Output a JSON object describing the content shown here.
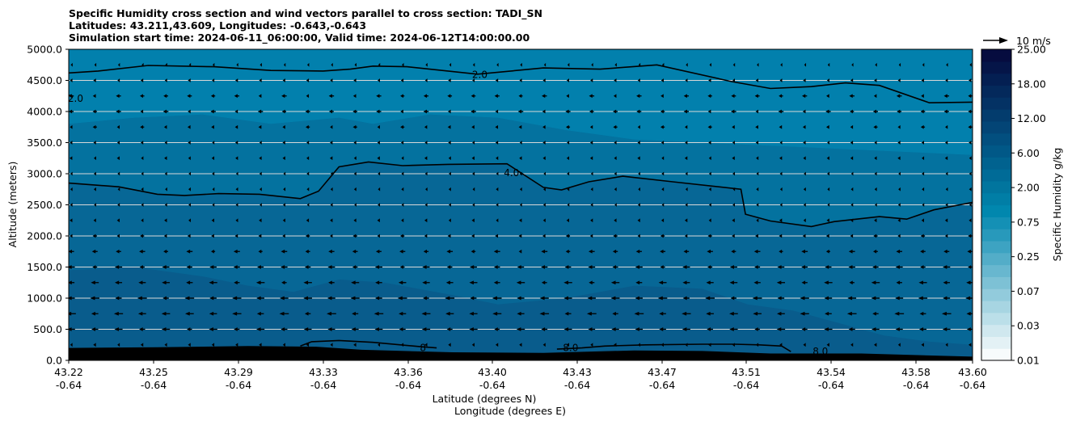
{
  "titles": [
    "Specific Humidity cross section and wind vectors parallel to cross section: TADI_SN",
    "Latitudes: 43.211,43.609, Longitudes: -0.643,-0.643",
    "Simulation start time: 2024-06-11_06:00:00, Valid time: 2024-06-12T14:00:00.00"
  ],
  "chart_data": {
    "type": "heatmap",
    "ylabel": "Altitude (meters)",
    "xlabel_lines": [
      "Latitude (degrees N)",
      "Longitude (degrees E)"
    ],
    "ylim": [
      0,
      5000
    ],
    "xlim": [
      43.211,
      43.609
    ],
    "y_ticks": [
      "0.0",
      "500.0",
      "1000.0",
      "1500.0",
      "2000.0",
      "2500.0",
      "3000.0",
      "3500.0",
      "4000.0",
      "4500.0",
      "5000.0"
    ],
    "y_tick_values": [
      0,
      500,
      1000,
      1500,
      2000,
      2500,
      3000,
      3500,
      4000,
      4500,
      5000
    ],
    "x_ticks": [
      {
        "lat": "43.22",
        "lon": "-0.64"
      },
      {
        "lat": "43.25",
        "lon": "-0.64"
      },
      {
        "lat": "43.29",
        "lon": "-0.64"
      },
      {
        "lat": "43.33",
        "lon": "-0.64"
      },
      {
        "lat": "43.36",
        "lon": "-0.64"
      },
      {
        "lat": "43.40",
        "lon": "-0.64"
      },
      {
        "lat": "43.43",
        "lon": "-0.64"
      },
      {
        "lat": "43.47",
        "lon": "-0.64"
      },
      {
        "lat": "43.51",
        "lon": "-0.64"
      },
      {
        "lat": "43.54",
        "lon": "-0.64"
      },
      {
        "lat": "43.58",
        "lon": "-0.64"
      },
      {
        "lat": "43.60",
        "lon": "-0.64"
      }
    ],
    "x_tick_values": [
      43.22,
      43.25,
      43.29,
      43.33,
      43.36,
      43.4,
      43.43,
      43.47,
      43.51,
      43.54,
      43.58,
      43.6
    ],
    "grid": "horizontal",
    "colorbar": {
      "label": "Specific Humidity g/kg",
      "tick_labels": [
        "0.01",
        "0.03",
        "0.07",
        "0.25",
        "0.75",
        "2.00",
        "6.00",
        "12.00",
        "18.00",
        "25.00"
      ],
      "colors": [
        "#f7fbfc",
        "#e3f1f5",
        "#d0e8ef",
        "#bbdfe9",
        "#a7d5e2",
        "#92cbdc",
        "#7dc1d5",
        "#68b7cf",
        "#53adc8",
        "#3da3c2",
        "#2899bb",
        "#1490b5",
        "#0187ae",
        "#017ea6",
        "#01759e",
        "#006b97",
        "#01628f",
        "#015887",
        "#024f7f",
        "#034576",
        "#033c6d",
        "#043264",
        "#04295b",
        "#041f52",
        "#051548",
        "#060c3f"
      ]
    },
    "fill_levels": [
      {
        "range": "2.00-4.00",
        "color": "#0280ad"
      },
      {
        "range": "4.00-6.00",
        "color": "#04729f"
      },
      {
        "range": "6.00-8.00",
        "color": "#076796"
      },
      {
        "range": "8.00-10.00",
        "color": "#095c8c"
      }
    ],
    "contour_levels": [
      "2.0",
      "4.0",
      "8.0"
    ],
    "contours": [
      {
        "level": "2.0",
        "points": [
          [
            43.211,
            4620
          ],
          [
            43.224,
            4650
          ],
          [
            43.246,
            4740
          ],
          [
            43.275,
            4720
          ],
          [
            43.3,
            4660
          ],
          [
            43.323,
            4650
          ],
          [
            43.335,
            4680
          ],
          [
            43.345,
            4730
          ],
          [
            43.36,
            4720
          ],
          [
            43.391,
            4600
          ],
          [
            43.42,
            4700
          ],
          [
            43.445,
            4680
          ],
          [
            43.47,
            4750
          ],
          [
            43.503,
            4480
          ],
          [
            43.52,
            4370
          ],
          [
            43.538,
            4400
          ],
          [
            43.553,
            4460
          ],
          [
            43.568,
            4420
          ],
          [
            43.59,
            4140
          ],
          [
            43.609,
            4150
          ]
        ]
      },
      {
        "level": "4.0",
        "points": [
          [
            43.211,
            2850
          ],
          [
            43.233,
            2790
          ],
          [
            43.25,
            2670
          ],
          [
            43.262,
            2650
          ],
          [
            43.277,
            2680
          ],
          [
            43.295,
            2670
          ],
          [
            43.313,
            2600
          ],
          [
            43.321,
            2720
          ],
          [
            43.33,
            3110
          ],
          [
            43.343,
            3190
          ],
          [
            43.358,
            3130
          ],
          [
            43.378,
            3150
          ],
          [
            43.404,
            3160
          ],
          [
            43.42,
            2780
          ],
          [
            43.428,
            2740
          ],
          [
            43.44,
            2870
          ],
          [
            43.455,
            2960
          ],
          [
            43.477,
            2870
          ],
          [
            43.507,
            2750
          ],
          [
            43.509,
            2350
          ],
          [
            43.52,
            2240
          ],
          [
            43.538,
            2150
          ],
          [
            43.548,
            2230
          ],
          [
            43.568,
            2310
          ],
          [
            43.58,
            2270
          ],
          [
            43.592,
            2420
          ],
          [
            43.609,
            2540
          ]
        ]
      },
      {
        "level": "8.0",
        "points": [
          [
            43.313,
            230
          ],
          [
            43.318,
            300
          ],
          [
            43.33,
            320
          ],
          [
            43.345,
            290
          ],
          [
            43.366,
            220
          ],
          [
            43.373,
            200
          ]
        ]
      },
      {
        "level": "8.0",
        "points": [
          [
            43.426,
            180
          ],
          [
            43.437,
            200
          ],
          [
            43.447,
            230
          ],
          [
            43.465,
            250
          ],
          [
            43.49,
            260
          ],
          [
            43.504,
            260
          ],
          [
            43.515,
            250
          ],
          [
            43.525,
            230
          ],
          [
            43.529,
            140
          ]
        ]
      }
    ],
    "contour_labels": [
      {
        "text": "2.0",
        "x": 43.392,
        "y": 4590
      },
      {
        "text": "2.0",
        "x": 43.214,
        "y": 4210
      },
      {
        "text": "4.0",
        "x": 43.406,
        "y": 3010
      },
      {
        "text": "8",
        "x": 43.367,
        "y": 200
      },
      {
        "text": "8.0",
        "x": 43.432,
        "y": 200
      },
      {
        "text": "8.0",
        "x": 43.542,
        "y": 140
      }
    ],
    "terrain_m": [
      [
        43.211,
        200
      ],
      [
        43.25,
        210
      ],
      [
        43.29,
        230
      ],
      [
        43.32,
        220
      ],
      [
        43.34,
        170
      ],
      [
        43.38,
        130
      ],
      [
        43.42,
        120
      ],
      [
        43.46,
        160
      ],
      [
        43.49,
        150
      ],
      [
        43.52,
        110
      ],
      [
        43.56,
        110
      ],
      [
        43.609,
        60
      ]
    ],
    "wind_vectors": {
      "reference": {
        "label": "10 m/s",
        "speed_ms": 10
      },
      "levels_m": [
        250,
        500,
        750,
        1000,
        1250,
        1500,
        1750,
        2000,
        2250,
        2500,
        2750,
        3000,
        3250,
        3500,
        3750,
        4000,
        4250,
        4500,
        4750
      ],
      "u_ms_by_level": [
        -1.5,
        -4.0,
        -4.5,
        -4.5,
        -4.0,
        -3.5,
        -3.0,
        -2.0,
        -1.5,
        -1.0,
        -1.0,
        -1.0,
        -1.5,
        -1.5,
        -2.0,
        -2.5,
        -2.5,
        -1.5,
        -0.5
      ],
      "n_columns": 39
    }
  }
}
